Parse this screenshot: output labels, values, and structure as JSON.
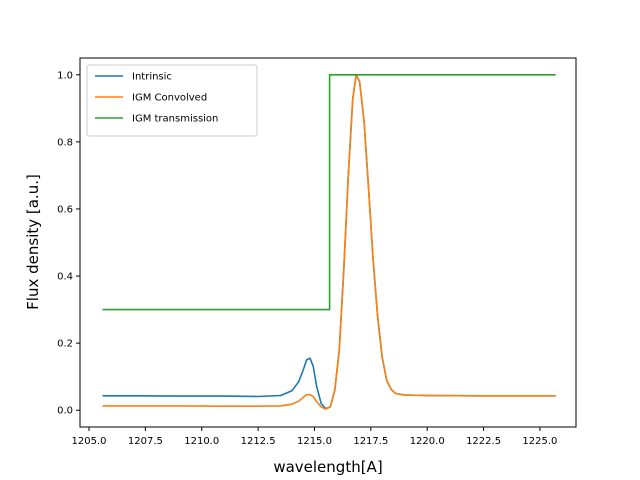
{
  "chart_data": {
    "type": "line",
    "xlabel": "wavelength[A]",
    "ylabel": "Flux density [a.u.]",
    "xlim": [
      1204.6,
      1226.6
    ],
    "ylim": [
      -0.05,
      1.05
    ],
    "xticks": [
      1205.0,
      1207.5,
      1210.0,
      1212.5,
      1215.0,
      1217.5,
      1220.0,
      1222.5,
      1225.0
    ],
    "xtick_labels": [
      "1205.0",
      "1207.5",
      "1210.0",
      "1212.5",
      "1215.0",
      "1217.5",
      "1220.0",
      "1222.5",
      "1225.0"
    ],
    "yticks": [
      0.0,
      0.2,
      0.4,
      0.6,
      0.8,
      1.0
    ],
    "ytick_labels": [
      "0.0",
      "0.2",
      "0.4",
      "0.6",
      "0.8",
      "1.0"
    ],
    "legend_position": "top-left",
    "grid": false,
    "series": [
      {
        "name": "Intrinsic",
        "color": "#1f77b4",
        "x": [
          1205.6,
          1207.0,
          1209.0,
          1211.0,
          1212.5,
          1213.5,
          1214.0,
          1214.3,
          1214.5,
          1214.65,
          1214.8,
          1214.95,
          1215.1,
          1215.3,
          1215.5,
          1215.7,
          1215.9,
          1216.1,
          1216.3,
          1216.5,
          1216.7,
          1216.85,
          1217.0,
          1217.2,
          1217.4,
          1217.6,
          1217.8,
          1218.0,
          1218.2,
          1218.4,
          1218.6,
          1219.0,
          1220.0,
          1222.0,
          1224.0,
          1225.7
        ],
        "y": [
          0.043,
          0.043,
          0.042,
          0.042,
          0.041,
          0.044,
          0.058,
          0.085,
          0.12,
          0.15,
          0.155,
          0.13,
          0.07,
          0.02,
          0.005,
          0.01,
          0.06,
          0.18,
          0.42,
          0.7,
          0.93,
          1.0,
          0.98,
          0.86,
          0.66,
          0.45,
          0.28,
          0.16,
          0.09,
          0.062,
          0.05,
          0.045,
          0.044,
          0.043,
          0.043,
          0.043
        ]
      },
      {
        "name": "IGM Convolved",
        "color": "#ff7f0e",
        "x": [
          1205.6,
          1207.0,
          1209.0,
          1211.0,
          1212.5,
          1213.5,
          1214.0,
          1214.3,
          1214.5,
          1214.65,
          1214.8,
          1214.95,
          1215.1,
          1215.3,
          1215.5,
          1215.7,
          1215.9,
          1216.1,
          1216.3,
          1216.5,
          1216.7,
          1216.85,
          1217.0,
          1217.2,
          1217.4,
          1217.6,
          1217.8,
          1218.0,
          1218.2,
          1218.4,
          1218.6,
          1219.0,
          1220.0,
          1222.0,
          1224.0,
          1225.7
        ],
        "y": [
          0.013,
          0.013,
          0.013,
          0.012,
          0.012,
          0.013,
          0.018,
          0.027,
          0.038,
          0.046,
          0.047,
          0.04,
          0.025,
          0.01,
          0.003,
          0.01,
          0.06,
          0.18,
          0.42,
          0.7,
          0.93,
          1.0,
          0.98,
          0.86,
          0.66,
          0.45,
          0.28,
          0.16,
          0.09,
          0.062,
          0.05,
          0.045,
          0.044,
          0.043,
          0.043,
          0.043
        ]
      },
      {
        "name": "IGM transmission",
        "color": "#2ca02c",
        "x": [
          1205.6,
          1215.67,
          1215.67,
          1225.7
        ],
        "y": [
          0.3,
          0.3,
          1.0,
          1.0
        ]
      }
    ]
  }
}
